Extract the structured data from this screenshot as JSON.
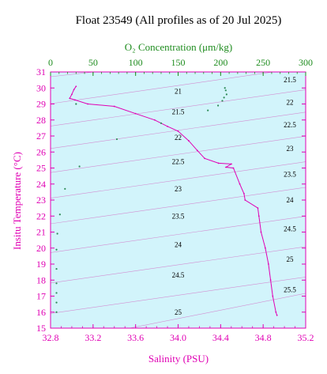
{
  "chart_data": {
    "type": "line",
    "title": "Float 23549  (All profiles as of 20 Jul 2025)",
    "top_axis_label": "O₂ Concentration (μm/kg)",
    "left_axis_label": "Insitu Temperature (°C)",
    "bottom_axis_label": "Salinity (PSU)",
    "x_bottom": {
      "range": [
        32.8,
        35.2
      ],
      "ticks": [
        32.8,
        33.2,
        33.6,
        34.0,
        34.4,
        34.8,
        35.2
      ],
      "tick_labels": [
        "32.8",
        "33.2",
        "33.6",
        "34.0",
        "34.4",
        "34.8",
        "35.2"
      ]
    },
    "x_top": {
      "range": [
        0,
        300
      ],
      "ticks": [
        0,
        50,
        100,
        150,
        200,
        250,
        300
      ],
      "tick_labels": [
        "0",
        "50",
        "100",
        "150",
        "200",
        "250",
        "300"
      ]
    },
    "y": {
      "range": [
        15,
        31
      ],
      "ticks": [
        15,
        16,
        17,
        18,
        19,
        20,
        21,
        22,
        23,
        24,
        25,
        26,
        27,
        28,
        29,
        30,
        31
      ],
      "tick_labels": [
        "15",
        "16",
        "17",
        "18",
        "19",
        "20",
        "21",
        "22",
        "23",
        "24",
        "25",
        "26",
        "27",
        "28",
        "29",
        "30",
        "31"
      ]
    },
    "density_contours": {
      "values": [
        21,
        21.5,
        22,
        22.5,
        23,
        23.5,
        24,
        24.5,
        25,
        25.5
      ],
      "labels": [
        "21",
        "21.5",
        "22",
        "22.5",
        "23",
        "23.5",
        "24",
        "24.5",
        "25",
        "25.5"
      ],
      "inner_labels": [
        {
          "label": "21",
          "x": 34.0,
          "y": 29.8
        },
        {
          "label": "21.5",
          "x": 34.0,
          "y": 28.5
        },
        {
          "label": "22",
          "x": 34.0,
          "y": 26.9
        },
        {
          "label": "22.5",
          "x": 34.0,
          "y": 25.4
        },
        {
          "label": "23",
          "x": 34.0,
          "y": 23.7
        },
        {
          "label": "23.5",
          "x": 34.0,
          "y": 22.0
        },
        {
          "label": "24",
          "x": 34.0,
          "y": 20.2
        },
        {
          "label": "24.5",
          "x": 34.0,
          "y": 18.3
        },
        {
          "label": "25",
          "x": 34.0,
          "y": 16.0
        }
      ],
      "edge_labels": [
        {
          "label": "21.5",
          "y": 30.5
        },
        {
          "label": "22",
          "y": 29.1
        },
        {
          "label": "22.5",
          "y": 27.7
        },
        {
          "label": "23",
          "y": 26.2
        },
        {
          "label": "23.5",
          "y": 24.6
        },
        {
          "label": "24",
          "y": 23.0
        },
        {
          "label": "24.5",
          "y": 21.2
        },
        {
          "label": "25",
          "y": 19.3
        },
        {
          "label": "25.5",
          "y": 17.4
        }
      ]
    },
    "series": [
      {
        "axis": "salinity",
        "points": [
          [
            33.04,
            30.1
          ],
          [
            33.02,
            29.9
          ],
          [
            33.0,
            29.6
          ],
          [
            32.98,
            29.35
          ],
          [
            33.03,
            29.25
          ],
          [
            33.15,
            29.0
          ],
          [
            33.4,
            28.85
          ],
          [
            33.6,
            28.4
          ],
          [
            33.78,
            28.0
          ],
          [
            33.9,
            27.6
          ],
          [
            34.0,
            27.3
          ],
          [
            34.1,
            26.7
          ],
          [
            34.18,
            26.1
          ],
          [
            34.25,
            25.6
          ],
          [
            34.38,
            25.3
          ],
          [
            34.5,
            25.25
          ],
          [
            34.45,
            25.05
          ],
          [
            34.52,
            25.0
          ],
          [
            34.58,
            24.0
          ],
          [
            34.62,
            23.4
          ],
          [
            34.63,
            23.0
          ],
          [
            34.75,
            22.5
          ],
          [
            34.76,
            22.0
          ],
          [
            34.78,
            21.0
          ],
          [
            34.82,
            20.0
          ],
          [
            34.85,
            19.0
          ],
          [
            34.87,
            18.0
          ],
          [
            34.89,
            17.0
          ],
          [
            34.92,
            16.0
          ],
          [
            34.93,
            15.8
          ]
        ],
        "color": "#e000b4"
      },
      {
        "axis": "oxygen",
        "points": [
          [
            205,
            30.0
          ],
          [
            206,
            29.85
          ],
          [
            207,
            29.6
          ],
          [
            204,
            29.4
          ],
          [
            202,
            29.2
          ],
          [
            197,
            28.9
          ],
          [
            185,
            28.6
          ],
          [
            30,
            29.0
          ],
          [
            130,
            27.8
          ],
          [
            78,
            26.8
          ],
          [
            34,
            25.1
          ],
          [
            17,
            23.7
          ],
          [
            11,
            22.1
          ],
          [
            8,
            20.9
          ],
          [
            7,
            19.9
          ],
          [
            7,
            18.7
          ],
          [
            7,
            17.8
          ],
          [
            7,
            17.2
          ],
          [
            7,
            16.6
          ],
          [
            7,
            16.0
          ]
        ],
        "color": "#2e8b57"
      }
    ],
    "colors": {
      "plot_background": "#d2f4fb",
      "salinity_axis": "#e000b4",
      "oxygen_axis": "#1e8c1e",
      "density_contours": "#d28fd2"
    }
  }
}
